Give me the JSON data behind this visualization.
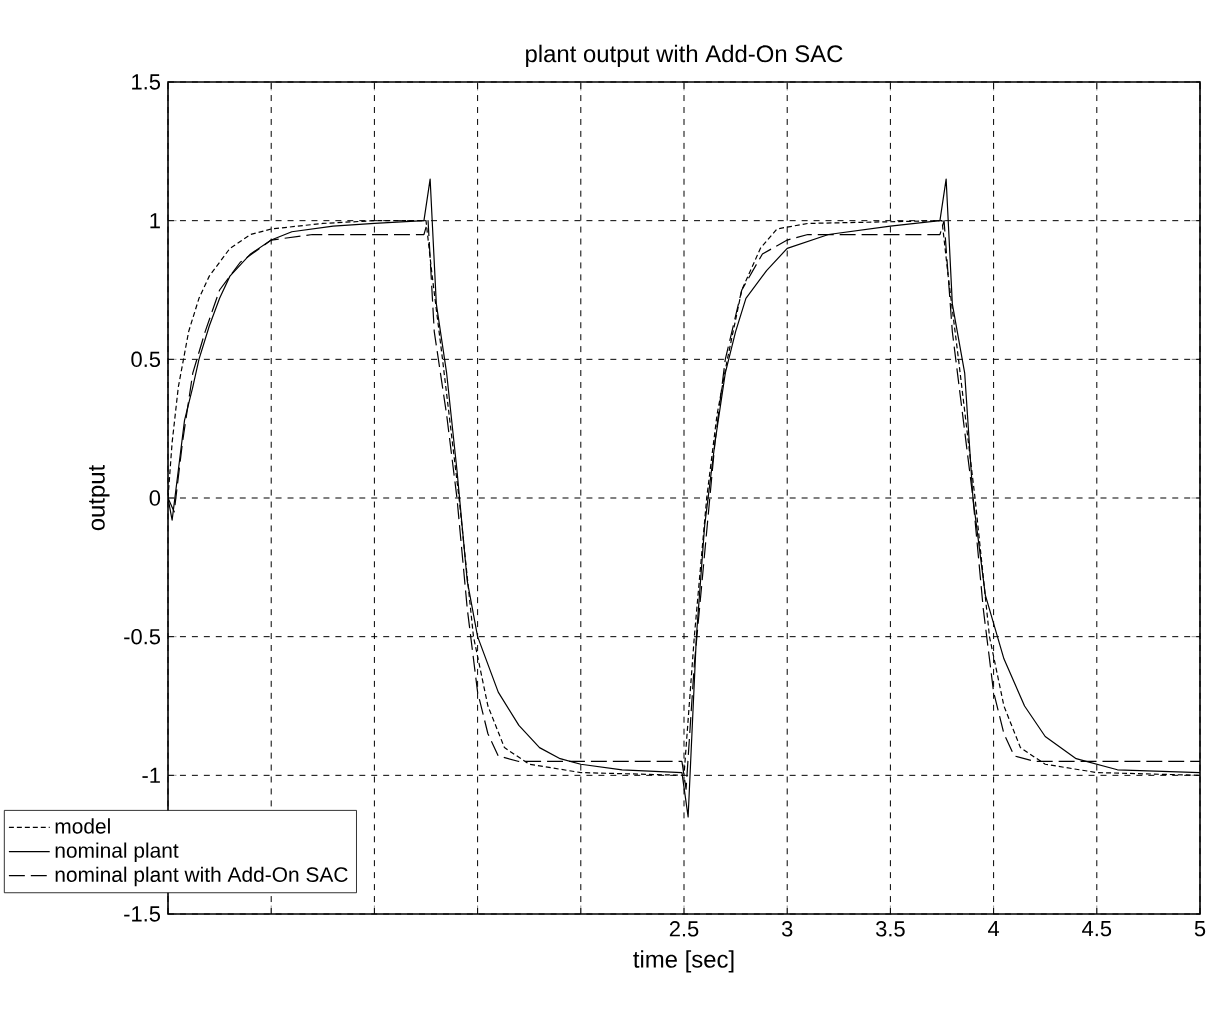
{
  "chart_data": {
    "type": "line",
    "title": "plant output with Add-On SAC",
    "xlabel": "time [sec]",
    "ylabel": "output",
    "xlim": [
      0,
      5
    ],
    "ylim": [
      -1.5,
      1.5
    ],
    "xticks": [
      {
        "value": 0,
        "label": null
      },
      {
        "value": 0.5,
        "label": null
      },
      {
        "value": 1,
        "label": null
      },
      {
        "value": 1.5,
        "label": null
      },
      {
        "value": 2,
        "label": null
      },
      2.5,
      3,
      3.5,
      4,
      4.5,
      5
    ],
    "yticks": [
      -1.5,
      -1,
      -0.5,
      0,
      0.5,
      1,
      1.5
    ],
    "grid": true,
    "legend": "bottom left",
    "marker": "none",
    "series": [
      {
        "name": "model",
        "color": "#000000",
        "line_style": "dotted",
        "x": [
          0,
          0.02,
          0.05,
          0.1,
          0.15,
          0.2,
          0.3,
          0.4,
          0.5,
          0.75,
          1.0,
          1.25,
          1.28,
          1.33,
          1.41,
          1.48,
          1.55,
          1.63,
          1.75,
          2.0,
          2.5,
          2.55,
          2.61,
          2.66,
          2.71,
          2.78,
          2.87,
          2.95,
          3.1,
          3.75,
          3.78,
          3.83,
          3.91,
          3.98,
          4.05,
          4.13,
          4.25,
          4.5,
          5
        ],
        "values": [
          0,
          0.2,
          0.4,
          0.6,
          0.72,
          0.8,
          0.9,
          0.95,
          0.97,
          0.99,
          1.0,
          1.0,
          0.8,
          0.5,
          0,
          -0.5,
          -0.75,
          -0.9,
          -0.96,
          -0.99,
          -1,
          -0.5,
          0,
          0.3,
          0.5,
          0.75,
          0.9,
          0.97,
          0.99,
          1,
          0.8,
          0.5,
          0,
          -0.5,
          -0.75,
          -0.9,
          -0.96,
          -0.99,
          -1
        ]
      },
      {
        "name": "nominal plant",
        "color": "#000000",
        "line_style": "solid",
        "x": [
          0,
          0.02,
          0.05,
          0.08,
          0.12,
          0.15,
          0.2,
          0.25,
          0.3,
          0.4,
          0.5,
          0.6,
          0.8,
          1.0,
          1.24,
          1.27,
          1.3,
          1.35,
          1.4,
          1.45,
          1.5,
          1.6,
          1.7,
          1.8,
          1.9,
          2.0,
          2.2,
          2.49,
          2.52,
          2.56,
          2.6,
          2.65,
          2.7,
          2.75,
          2.8,
          2.9,
          3.0,
          3.2,
          3.5,
          3.74,
          3.77,
          3.8,
          3.86,
          3.9,
          3.96,
          4.05,
          4.15,
          4.25,
          4.4,
          4.6,
          5
        ],
        "values": [
          0,
          -0.08,
          0.1,
          0.28,
          0.4,
          0.5,
          0.62,
          0.72,
          0.8,
          0.88,
          0.93,
          0.96,
          0.98,
          0.99,
          1.0,
          1.15,
          0.7,
          0.45,
          0.1,
          -0.3,
          -0.5,
          -0.7,
          -0.82,
          -0.9,
          -0.94,
          -0.96,
          -0.98,
          -0.99,
          -1.15,
          -0.5,
          -0.1,
          0.2,
          0.45,
          0.6,
          0.72,
          0.82,
          0.9,
          0.95,
          0.98,
          1.0,
          1.15,
          0.7,
          0.45,
          0,
          -0.35,
          -0.58,
          -0.75,
          -0.86,
          -0.94,
          -0.98,
          -0.99
        ]
      },
      {
        "name": "nominal plant with Add-On SAC",
        "color": "#000000",
        "line_style": "dashed",
        "x": [
          0,
          0.03,
          0.07,
          0.12,
          0.18,
          0.25,
          0.35,
          0.5,
          0.7,
          1.24,
          1.26,
          1.29,
          1.35,
          1.4,
          1.45,
          1.5,
          1.55,
          1.6,
          1.7,
          2.49,
          2.51,
          2.55,
          2.6,
          2.65,
          2.7,
          2.78,
          2.88,
          3.0,
          3.1,
          3.74,
          3.76,
          3.8,
          3.85,
          3.9,
          3.95,
          4.0,
          4.05,
          4.1,
          4.2,
          5
        ],
        "values": [
          0,
          -0.05,
          0.2,
          0.45,
          0.6,
          0.75,
          0.85,
          0.93,
          0.95,
          0.95,
          1.0,
          0.6,
          0.3,
          0,
          -0.4,
          -0.7,
          -0.85,
          -0.93,
          -0.95,
          -0.95,
          -1.05,
          -0.6,
          -0.2,
          0.2,
          0.5,
          0.75,
          0.88,
          0.93,
          0.95,
          0.95,
          1.0,
          0.6,
          0.3,
          0,
          -0.4,
          -0.7,
          -0.85,
          -0.93,
          -0.95,
          -0.95
        ]
      }
    ]
  }
}
